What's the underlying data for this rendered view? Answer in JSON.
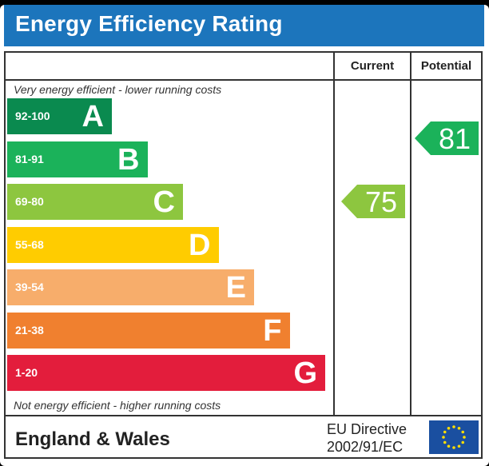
{
  "title": "Energy Efficiency Rating",
  "columns": {
    "current": "Current",
    "potential": "Potential"
  },
  "notes": {
    "top": "Very energy efficient - lower running costs",
    "bottom": "Not energy efficient - higher running costs"
  },
  "footer": {
    "country": "England & Wales",
    "directive_line1": "EU Directive",
    "directive_line2": "2002/91/EC"
  },
  "colors": {
    "A": "#0a8a4f",
    "B": "#1bb25a",
    "C": "#8dc63f",
    "D": "#ffcc00",
    "E": "#f7ad6b",
    "F": "#f0802f",
    "G": "#e31d3c",
    "title_bar": "#1c75bc",
    "eu_flag": "#1a4fa0",
    "eu_stars": "#ffdd00"
  },
  "chart_data": {
    "type": "bar",
    "title": "Energy Efficiency Rating",
    "categories": [
      "A",
      "B",
      "C",
      "D",
      "E",
      "F",
      "G"
    ],
    "ranges": [
      "92-100",
      "81-91",
      "69-80",
      "55-68",
      "39-54",
      "21-38",
      "1-20"
    ],
    "current": {
      "value": 75,
      "band": "C"
    },
    "potential": {
      "value": 81,
      "band": "B"
    }
  }
}
